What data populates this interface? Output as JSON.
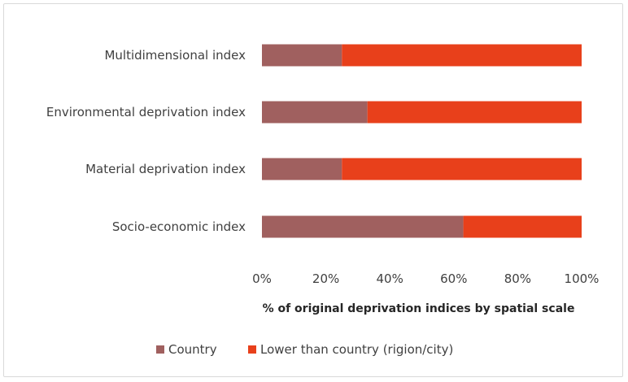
{
  "chart_data": {
    "type": "bar",
    "orientation": "horizontal",
    "stacked": true,
    "categories": [
      "Multidimensional index",
      "Environmental deprivation index",
      "Material deprivation index",
      "Socio-economic index"
    ],
    "series": [
      {
        "name": "Country",
        "color": "#a0605f",
        "values": [
          25,
          33,
          25,
          63
        ]
      },
      {
        "name": "Lower than country (rigion/city)",
        "color": "#e8401b",
        "values": [
          75,
          67,
          75,
          37
        ]
      }
    ],
    "xlabel": "% of original deprivation indices by spatial scale",
    "xlim": [
      0,
      100
    ],
    "xticks": [
      "0%",
      "20%",
      "40%",
      "60%",
      "80%",
      "100%"
    ],
    "grid": false,
    "legend": "bottom"
  }
}
